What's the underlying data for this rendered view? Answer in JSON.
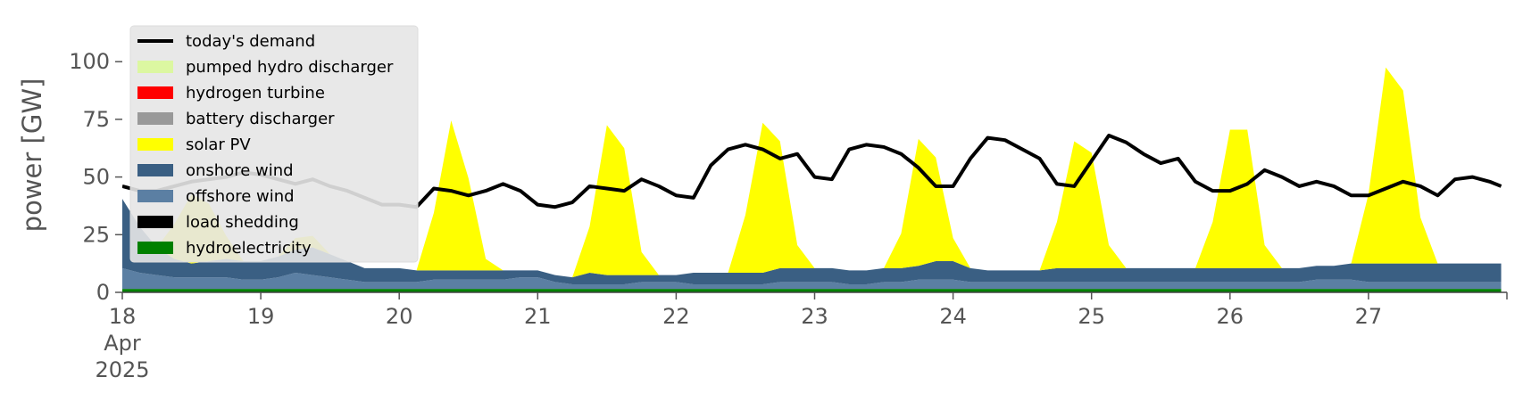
{
  "chart_data": {
    "type": "area",
    "stacked": true,
    "ylabel": "power [GW]",
    "ylim": [
      0,
      119
    ],
    "grid": false,
    "legend_position": "top-left",
    "x_start": "2025-04-18",
    "x_days": 10,
    "x_ticks": [
      {
        "day": 0,
        "label": "18",
        "sub": [
          "Apr",
          "2025"
        ]
      },
      {
        "day": 1,
        "label": "19"
      },
      {
        "day": 2,
        "label": "20"
      },
      {
        "day": 3,
        "label": "21"
      },
      {
        "day": 4,
        "label": "22"
      },
      {
        "day": 5,
        "label": "23"
      },
      {
        "day": 6,
        "label": "24"
      },
      {
        "day": 7,
        "label": "25"
      },
      {
        "day": 8,
        "label": "26"
      },
      {
        "day": 9,
        "label": "27"
      }
    ],
    "y_ticks": [
      0,
      25,
      50,
      75,
      100
    ],
    "time_hours": [
      0,
      3,
      6,
      9,
      12,
      15,
      18,
      21,
      24,
      27,
      30,
      33,
      36,
      39,
      42,
      45,
      48,
      51,
      54,
      57,
      60,
      63,
      66,
      69,
      72,
      75,
      78,
      81,
      84,
      87,
      90,
      93,
      96,
      99,
      102,
      105,
      108,
      111,
      114,
      117,
      120,
      123,
      126,
      129,
      132,
      135,
      138,
      141,
      144,
      147,
      150,
      153,
      156,
      159,
      162,
      165,
      168,
      171,
      174,
      177,
      180,
      183,
      186,
      189,
      192,
      195,
      198,
      201,
      204,
      207,
      210,
      213,
      216,
      219,
      222,
      225,
      228,
      231,
      234,
      237,
      239
    ],
    "series": [
      {
        "name": "hydroelectricity",
        "color": "#008000",
        "values": [
          1.5,
          1.5,
          1.5,
          1.5,
          1.5,
          1.5,
          1.5,
          1.5,
          1.5,
          1.5,
          1.5,
          1.5,
          1.5,
          1.5,
          1.5,
          1.5,
          1.5,
          1.5,
          1.5,
          1.5,
          1.5,
          1.5,
          1.5,
          1.5,
          1.5,
          1.5,
          1.5,
          1.5,
          1.5,
          1.5,
          1.5,
          1.5,
          1.5,
          1.5,
          1.5,
          1.5,
          1.5,
          1.5,
          1.5,
          1.5,
          1.5,
          1.5,
          1.5,
          1.5,
          1.5,
          1.5,
          1.5,
          1.5,
          1.5,
          1.5,
          1.5,
          1.5,
          1.5,
          1.5,
          1.5,
          1.5,
          1.5,
          1.5,
          1.5,
          1.5,
          1.5,
          1.5,
          1.5,
          1.5,
          1.5,
          1.5,
          1.5,
          1.5,
          1.5,
          1.5,
          1.5,
          1.5,
          1.5,
          1.5,
          1.5,
          1.5,
          1.5,
          1.5,
          1.5,
          1.5,
          1.5
        ]
      },
      {
        "name": "load shedding",
        "color": "#000000",
        "values": [
          0,
          0,
          0,
          0,
          0,
          0,
          0,
          0,
          0,
          0,
          0,
          0,
          0,
          0,
          0,
          0,
          0,
          0,
          0,
          0,
          0,
          0,
          0,
          0,
          0,
          0,
          0,
          0,
          0,
          0,
          0,
          0,
          0,
          0,
          0,
          0,
          0,
          0,
          0,
          0,
          0,
          0,
          0,
          0,
          0,
          0,
          0,
          0,
          0,
          0,
          0,
          0,
          0,
          0,
          0,
          0,
          0,
          0,
          0,
          0,
          0,
          0,
          0,
          0,
          0,
          0,
          0,
          0,
          0,
          0,
          0,
          0,
          0,
          0,
          0,
          0,
          0,
          0,
          0,
          0,
          0
        ]
      },
      {
        "name": "offshore wind",
        "color": "#5b7fa3",
        "values": [
          9,
          7,
          6,
          5,
          5,
          5,
          5,
          4,
          4,
          5,
          7,
          6,
          5,
          4,
          3,
          3,
          3,
          3,
          4,
          4,
          4,
          4,
          4,
          5,
          5,
          3,
          2,
          2,
          2,
          2,
          3,
          3,
          3,
          2,
          2,
          2,
          2,
          2,
          3,
          3,
          3,
          3,
          2,
          2,
          3,
          3,
          4,
          4,
          4,
          3,
          3,
          3,
          3,
          3,
          3,
          3,
          3,
          3,
          3,
          3,
          3,
          3,
          3,
          3,
          3,
          3,
          3,
          3,
          3,
          4,
          4,
          4,
          3,
          3,
          3,
          3,
          3,
          3,
          3,
          3,
          3
        ]
      },
      {
        "name": "onshore wind",
        "color": "#3a5f83",
        "values": [
          30,
          20,
          12,
          8,
          6,
          7,
          8,
          8,
          8,
          9,
          10,
          12,
          10,
          8,
          6,
          6,
          6,
          5,
          4,
          4,
          4,
          4,
          4,
          3,
          3,
          3,
          3,
          5,
          4,
          4,
          3,
          3,
          3,
          5,
          5,
          5,
          5,
          5,
          6,
          6,
          6,
          6,
          6,
          6,
          6,
          6,
          6,
          8,
          8,
          6,
          5,
          5,
          5,
          5,
          6,
          6,
          6,
          6,
          6,
          6,
          6,
          6,
          6,
          6,
          6,
          6,
          6,
          6,
          6,
          6,
          6,
          7,
          8,
          8,
          8,
          8,
          8,
          8,
          8,
          8,
          8
        ]
      },
      {
        "name": "solar PV",
        "color": "#ffff00",
        "values": [
          0,
          0,
          0,
          15,
          30,
          25,
          10,
          0,
          0,
          0,
          5,
          5,
          0,
          0,
          0,
          0,
          0,
          0,
          25,
          65,
          40,
          5,
          0,
          0,
          0,
          0,
          0,
          20,
          65,
          55,
          10,
          0,
          0,
          0,
          0,
          0,
          25,
          65,
          55,
          10,
          0,
          0,
          0,
          0,
          0,
          15,
          55,
          45,
          10,
          0,
          0,
          0,
          0,
          0,
          20,
          55,
          50,
          10,
          0,
          0,
          0,
          0,
          0,
          20,
          60,
          60,
          10,
          0,
          0,
          0,
          0,
          0,
          30,
          85,
          75,
          20,
          0,
          0,
          0,
          0,
          0
        ]
      }
    ],
    "demand": {
      "name": "today's demand",
      "color": "#000000",
      "values": [
        46,
        44,
        44,
        46,
        48,
        49,
        50,
        52,
        51,
        49,
        47,
        49,
        46,
        44,
        41,
        38,
        38,
        37,
        45,
        44,
        42,
        44,
        47,
        44,
        38,
        37,
        39,
        46,
        45,
        44,
        49,
        46,
        42,
        41,
        55,
        62,
        64,
        62,
        58,
        60,
        50,
        49,
        62,
        64,
        63,
        60,
        54,
        46,
        46,
        58,
        67,
        66,
        62,
        58,
        47,
        46,
        57,
        68,
        65,
        60,
        56,
        58,
        48,
        44,
        44,
        47,
        53,
        50,
        46,
        48,
        46,
        42,
        42,
        45,
        48,
        46,
        42,
        49,
        50,
        48,
        46
      ]
    },
    "legend": [
      {
        "name": "today's demand",
        "color": "#000000",
        "kind": "line"
      },
      {
        "name": "pumped hydro discharger",
        "color": "#dcf7a1",
        "kind": "patch"
      },
      {
        "name": "hydrogen turbine",
        "color": "#ff0000",
        "kind": "patch"
      },
      {
        "name": "battery discharger",
        "color": "#999999",
        "kind": "patch"
      },
      {
        "name": "solar PV",
        "color": "#ffff00",
        "kind": "patch"
      },
      {
        "name": "onshore wind",
        "color": "#3a5f83",
        "kind": "patch"
      },
      {
        "name": "offshore wind",
        "color": "#5b7fa3",
        "kind": "patch"
      },
      {
        "name": "load shedding",
        "color": "#000000",
        "kind": "patch"
      },
      {
        "name": "hydroelectricity",
        "color": "#008000",
        "kind": "patch"
      }
    ]
  }
}
